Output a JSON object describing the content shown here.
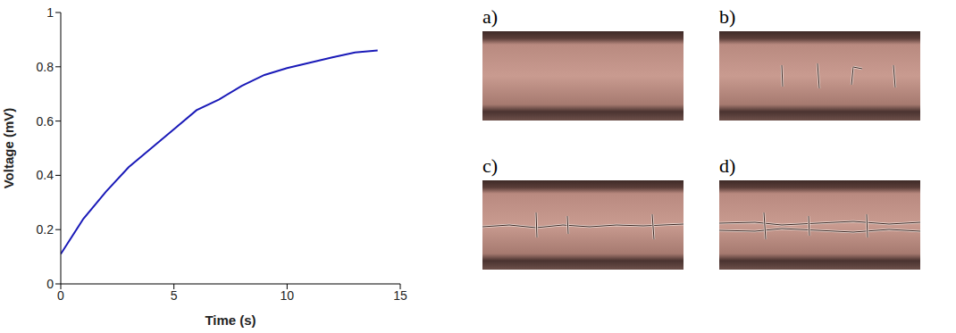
{
  "chart_data": {
    "type": "line",
    "x_label": "Time (s)",
    "y_label": "Voltage (mV)",
    "x": [
      0,
      1,
      2,
      3,
      4,
      5,
      6,
      7,
      8,
      9,
      10,
      11,
      12,
      13,
      14
    ],
    "series": [
      {
        "name": "Voltage",
        "color": "#1a1ab8",
        "values": [
          0.11,
          0.24,
          0.34,
          0.43,
          0.5,
          0.57,
          0.64,
          0.68,
          0.73,
          0.77,
          0.795,
          0.815,
          0.835,
          0.853,
          0.86
        ]
      }
    ],
    "xlim": [
      0,
      15
    ],
    "xticks": [
      0,
      5,
      10,
      15
    ],
    "ylim": [
      0,
      1
    ],
    "yticks": [
      0,
      0.2,
      0.4,
      0.6,
      0.8,
      1
    ],
    "grid": false
  },
  "image_panels": [
    "a)",
    "b)",
    "c)",
    "d)"
  ]
}
